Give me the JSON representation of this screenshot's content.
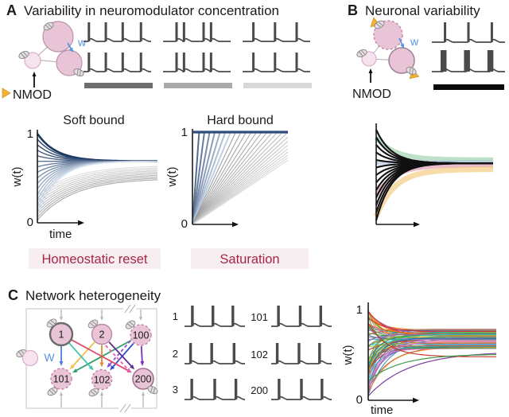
{
  "colors": {
    "neuron_fill": "#E9C4D7",
    "neuron_fill_light": "#F6E3EE",
    "accent_blue": "#5b93e0",
    "nmod_yellow": "#f2b23a",
    "crimson": "#a92445",
    "badge_bg": "#f7eef2",
    "spike_gray": "#4a4a4a"
  },
  "panelA": {
    "label": "A",
    "title": "Variability in neuromodulator concentration",
    "nmod": "NMOD",
    "w": "w",
    "groups": [
      {
        "bar_color": "#6e6e6e",
        "spikes": [
          0.08,
          0.33,
          0.58,
          0.85
        ]
      },
      {
        "bar_color": "#a9a9a9",
        "spikes": [
          0.2,
          0.31,
          0.6,
          0.71
        ]
      },
      {
        "bar_color": "#d9d9d9",
        "spikes": [
          0.16,
          0.48,
          0.8
        ]
      }
    ],
    "soft": {
      "title": "Soft bound",
      "ylabel": "w(t)",
      "xlabel": "time",
      "ytop": "1",
      "ybottom": "0",
      "n_blue": 16,
      "blue_converge": 0.69,
      "blue_tau": 0.16,
      "n_gray": 10,
      "gray_converge_min": 0.5,
      "gray_converge_max": 0.645,
      "gray_tau": 0.3
    },
    "hard": {
      "title": "Hard bound",
      "ylabel": "w(t)",
      "ytop": "1",
      "ybottom": "0",
      "n_lines": 26,
      "saturation_level": 1
    },
    "badge_soft": "Homeostatic reset",
    "badge_hard": "Saturation"
  },
  "panelB": {
    "label": "B",
    "title": "Neuronal variability",
    "nmod": "NMOD",
    "w": "w",
    "trains": [
      {
        "spikes": [
          0.18,
          0.5,
          0.82
        ],
        "thick": false
      },
      {
        "spikes": [
          0.16,
          0.48,
          0.8
        ],
        "thick": true
      }
    ],
    "bar_color": "#0b0b0b",
    "plot": {
      "n_lines": 13,
      "converge": 0.62,
      "tau": 0.13,
      "bands": [
        {
          "color": "#86c79a",
          "w0": 0.88,
          "dc": 0.035,
          "width": 6
        },
        {
          "color": "#a8bede",
          "w0": 0.62,
          "dc": 0.012,
          "width": 5
        },
        {
          "color": "#d9849e",
          "w0": 0.3,
          "dc": -0.02,
          "width": 5
        },
        {
          "color": "#f0bd62",
          "w0": 0.08,
          "dc": -0.06,
          "width": 7
        }
      ]
    }
  },
  "panelC": {
    "label": "C",
    "title": "Network heterogeneity",
    "w": "W",
    "nodes": [
      {
        "label": "1",
        "stroke": "#6b6b6b",
        "stroke_width": 2.4,
        "dashed": false
      },
      {
        "label": "2",
        "stroke": "#bb8aa6",
        "stroke_width": 1.4,
        "dashed": false
      },
      {
        "label": "100",
        "stroke": "#c77fa9",
        "stroke_width": 1.4,
        "dashed": true
      },
      {
        "label": "101",
        "stroke": "#c77fa9",
        "stroke_width": 1.4,
        "dashed": true
      },
      {
        "label": "102",
        "stroke": "#c77fa9",
        "stroke_width": 1.4,
        "dashed": true
      },
      {
        "label": "200",
        "stroke": "#a06f8b",
        "stroke_width": 1.6,
        "dashed": false
      }
    ],
    "edges": [
      {
        "from": 0,
        "to": 3,
        "color": "#4f7de0"
      },
      {
        "from": 1,
        "to": 3,
        "color": "#f2c04e"
      },
      {
        "from": 2,
        "to": 3,
        "color": "#2f9e68"
      },
      {
        "from": 0,
        "to": 4,
        "color": "#45c4b0"
      },
      {
        "from": 1,
        "to": 4,
        "color": "#e2882f"
      },
      {
        "from": 2,
        "to": 4,
        "color": "#2f4bc9"
      },
      {
        "from": 2,
        "to": 4,
        "color": "#8a4fd8",
        "dashed": true,
        "off": 5
      },
      {
        "from": 0,
        "to": 5,
        "color": "#d94f6e"
      },
      {
        "from": 1,
        "to": 5,
        "color": "#5e2d91"
      },
      {
        "from": 1,
        "to": 5,
        "color": "#e560b0",
        "dashed": true,
        "off": 6
      },
      {
        "from": 2,
        "to": 5,
        "color": "#7b2fbe"
      }
    ],
    "trains_left": [
      {
        "label": "1",
        "spikes": [
          0.13,
          0.47,
          0.8
        ]
      },
      {
        "label": "2",
        "spikes": [
          0.1,
          0.45,
          0.82
        ]
      },
      {
        "label": "3",
        "spikes": [
          0.12,
          0.5,
          0.85
        ]
      }
    ],
    "trains_right": [
      {
        "label": "101",
        "spikes": [
          0.12,
          0.48,
          0.82
        ]
      },
      {
        "label": "102",
        "spikes": [
          0.1,
          0.46,
          0.8
        ]
      },
      {
        "label": "200",
        "spikes": [
          0.13,
          0.5,
          0.84
        ]
      }
    ],
    "plot": {
      "ylabel": "w(t)",
      "xlabel": "time",
      "ytop": "1",
      "ybottom": "0",
      "n_lines": 70,
      "converge_min": 0.56,
      "converge_max": 0.78,
      "palette": [
        "#1f77b4",
        "#ff7f0e",
        "#2ca02c",
        "#d62728",
        "#9467bd",
        "#8c564b",
        "#e377c2",
        "#7f7f7f",
        "#bcbd22",
        "#17becf"
      ],
      "outliers": [
        {
          "w0": 0.03,
          "c": 0.53,
          "tau": 0.32,
          "color": "#7b3fa0"
        },
        {
          "w0": 0.85,
          "c": 0.47,
          "tau": 0.15,
          "color": "#c23b2e"
        },
        {
          "w0": 0.2,
          "c": 0.5,
          "tau": 0.25,
          "color": "#3f9e4d"
        }
      ]
    }
  }
}
